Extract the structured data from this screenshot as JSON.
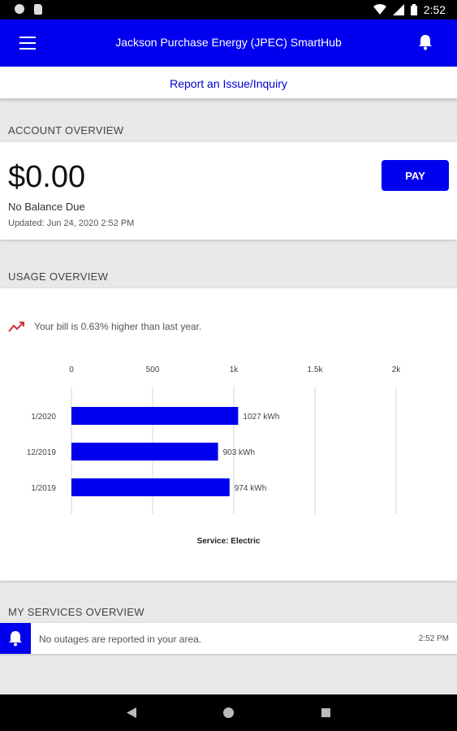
{
  "status_bar": {
    "time": "2:52"
  },
  "app_bar": {
    "title": "Jackson Purchase Energy (JPEC) SmartHub"
  },
  "report_link": "Report an Issue/Inquiry",
  "account_overview": {
    "header": "ACCOUNT OVERVIEW",
    "balance": "$0.00",
    "balance_label": "No Balance Due",
    "updated": "Updated:  Jun 24, 2020 2:52 PM",
    "pay_label": "PAY"
  },
  "usage_overview": {
    "header": "USAGE OVERVIEW",
    "trend_text": "Your bill is 0.63% higher than last year.",
    "trend_color": "#d32f2f",
    "service_label": "Service: Electric"
  },
  "chart_data": {
    "type": "bar",
    "orientation": "horizontal",
    "categories": [
      "1/2020",
      "12/2019",
      "1/2019"
    ],
    "values": [
      1027,
      903,
      974
    ],
    "data_labels": [
      "1027 kWh",
      "903 kWh",
      "974 kWh"
    ],
    "x_ticks": [
      0,
      500,
      1000,
      1500,
      2000
    ],
    "x_tick_labels": [
      "0",
      "500",
      "1k",
      "1.5k",
      "2k"
    ],
    "xlim": [
      0,
      2000
    ],
    "bar_color": "#0000ee",
    "grid": true,
    "xlabel": "Service: Electric"
  },
  "services_overview": {
    "header": "MY SERVICES OVERVIEW",
    "outage_text": "No outages are reported in your area.",
    "outage_time": "2:52 PM"
  }
}
